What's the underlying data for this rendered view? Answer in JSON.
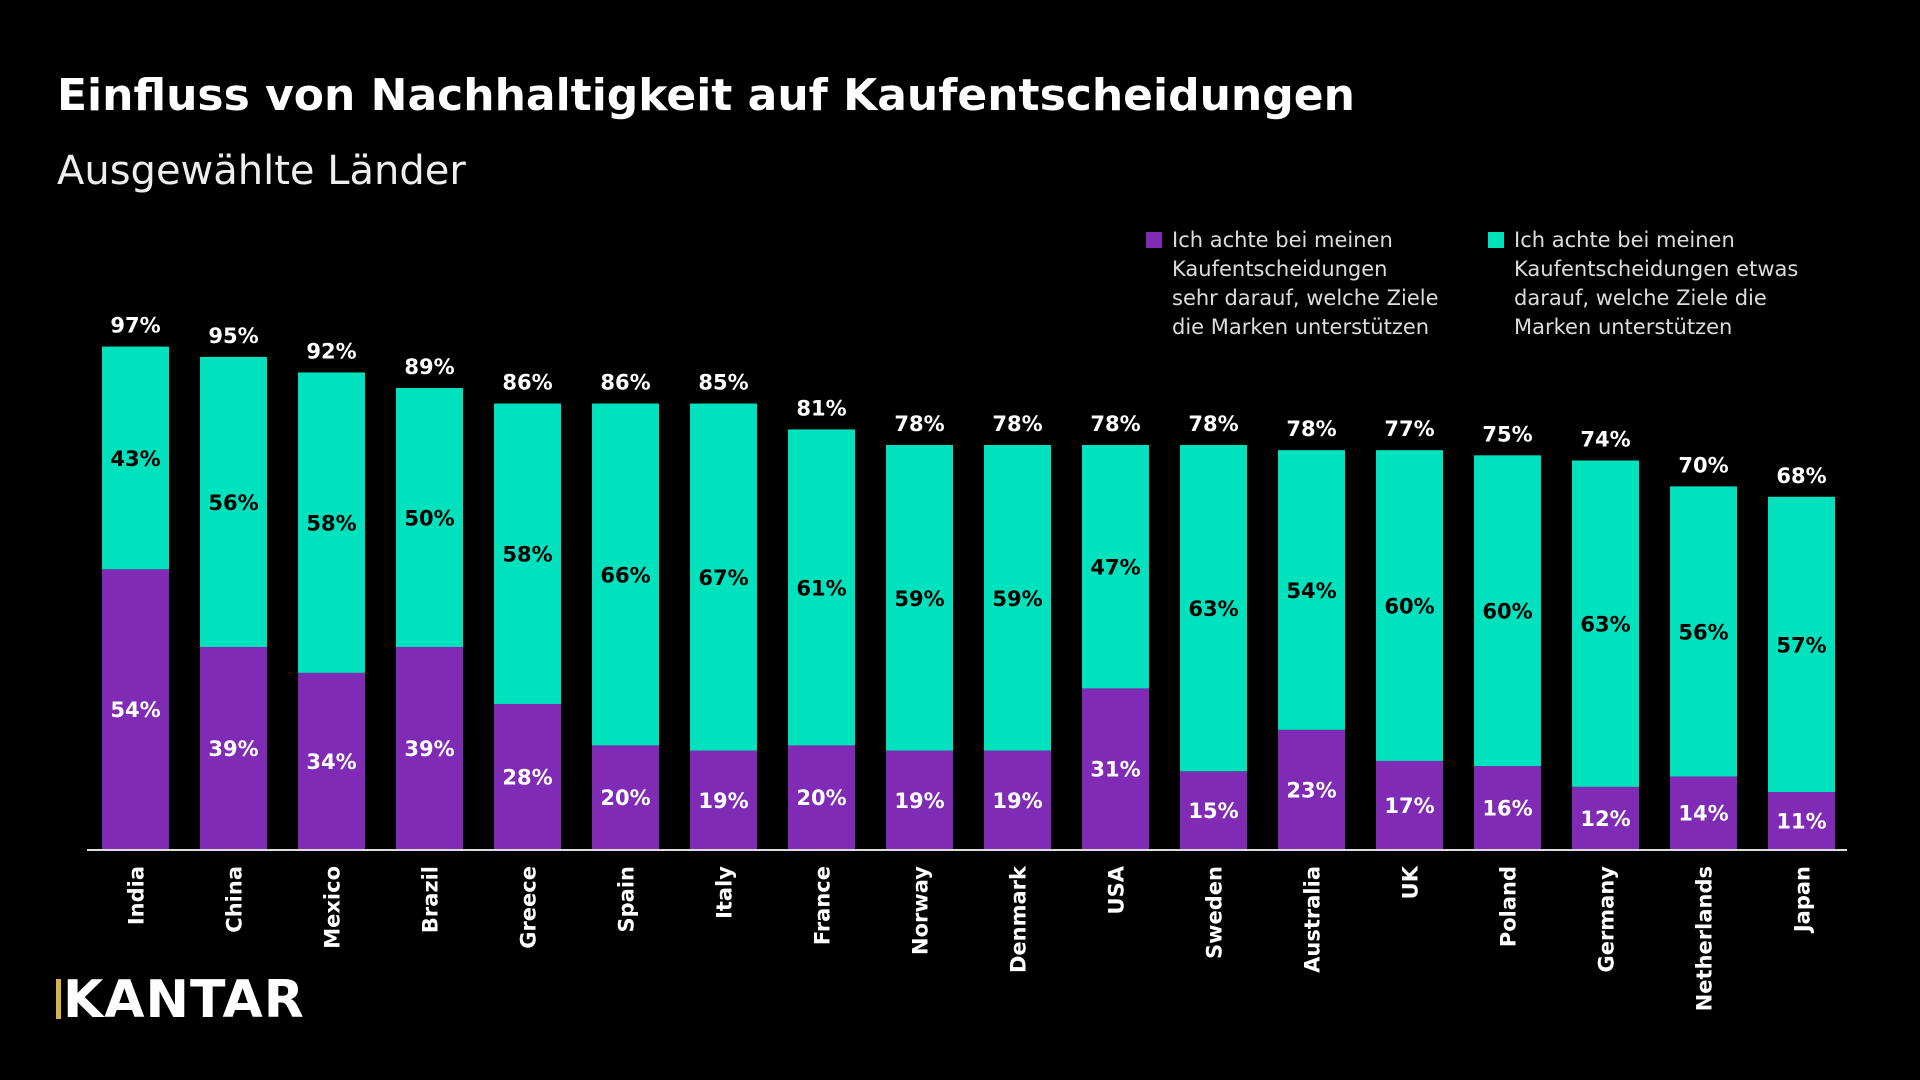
{
  "chart_data": {
    "type": "bar",
    "stacked": true,
    "title": "Einfluss von Nachhaltigkeit auf Kaufentscheidungen",
    "subtitle": "Ausgewählte Länder",
    "categories": [
      "India",
      "China",
      "Mexico",
      "Brazil",
      "Greece",
      "Spain",
      "Italy",
      "France",
      "Norway",
      "Denmark",
      "USA",
      "Sweden",
      "Australia",
      "UK",
      "Poland",
      "Germany",
      "Netherlands",
      "Japan"
    ],
    "series": [
      {
        "name": "Ich achte bei meinen Kaufentscheidungen sehr darauf, welche Ziele die Marken unterstützen",
        "color": "#7f2bb5",
        "values": [
          54,
          39,
          34,
          39,
          28,
          20,
          19,
          20,
          19,
          19,
          31,
          15,
          23,
          17,
          16,
          12,
          14,
          11
        ]
      },
      {
        "name": "Ich achte bei meinen Kaufentscheidungen etwas darauf, welche Ziele die Marken unterstützen",
        "color": "#00e2bd",
        "values": [
          43,
          56,
          58,
          50,
          58,
          66,
          67,
          61,
          59,
          59,
          47,
          63,
          54,
          60,
          60,
          63,
          56,
          57
        ]
      }
    ],
    "totals": [
      97,
      95,
      92,
      89,
      86,
      86,
      85,
      81,
      78,
      78,
      78,
      78,
      78,
      77,
      75,
      74,
      70,
      68
    ],
    "value_suffix": "%",
    "legend_position": "top-right",
    "grid": false,
    "ylim": [
      0,
      100
    ]
  },
  "legend": [
    {
      "text": "Ich achte bei meinen\nKaufentscheidungen\nsehr darauf, welche Ziele\ndie Marken unterstützen"
    },
    {
      "text": "Ich achte bei meinen\nKaufentscheidungen etwas\ndarauf, welche Ziele die\nMarken unterstützen"
    }
  ],
  "logo": "KANTAR"
}
